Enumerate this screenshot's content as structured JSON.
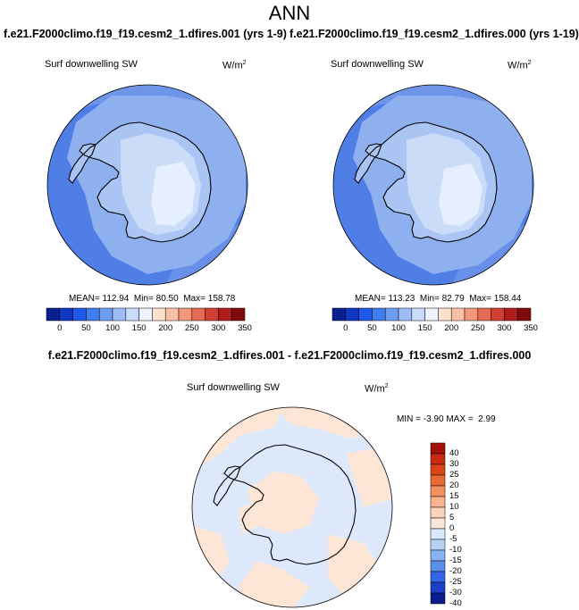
{
  "page_title": "ANN",
  "chart_data": [
    {
      "type": "heatmap",
      "projection": "south-polar-stereographic",
      "title": "f.e21.F2000climo.f19_f19.cesm2_1.dfires.001 (yrs 1-9)",
      "variable": "Surf downwelling SW",
      "units": "W/m",
      "units_exp": "2",
      "stats": {
        "mean_label": "MEAN=",
        "mean": "112.94",
        "min_label": "Min=",
        "min": "80.50",
        "max_label": "Max=",
        "max": "158.78"
      },
      "colorbar": {
        "orientation": "horizontal",
        "levels": [
          0,
          25,
          50,
          75,
          100,
          125,
          150,
          175,
          200,
          225,
          250,
          275,
          300,
          325,
          350
        ],
        "tick_labels": [
          "0",
          "50",
          "100",
          "150",
          "200",
          "250",
          "300",
          "350"
        ]
      }
    },
    {
      "type": "heatmap",
      "projection": "south-polar-stereographic",
      "title": "f.e21.F2000climo.f19_f19.cesm2_1.dfires.000 (yrs 1-19)",
      "variable": "Surf downwelling SW",
      "units": "W/m",
      "units_exp": "2",
      "stats": {
        "mean_label": "MEAN=",
        "mean": "113.23",
        "min_label": "Min=",
        "min": "82.79",
        "max_label": "Max=",
        "max": "158.44"
      },
      "colorbar": {
        "orientation": "horizontal",
        "levels": [
          0,
          25,
          50,
          75,
          100,
          125,
          150,
          175,
          200,
          225,
          250,
          275,
          300,
          325,
          350
        ],
        "tick_labels": [
          "0",
          "50",
          "100",
          "150",
          "200",
          "250",
          "300",
          "350"
        ]
      }
    },
    {
      "type": "heatmap",
      "projection": "south-polar-stereographic",
      "title": "f.e21.F2000climo.f19_f19.cesm2_1.dfires.001 - f.e21.F2000climo.f19_f19.cesm2_1.dfires.000",
      "variable": "Surf downwelling SW",
      "units": "W/m",
      "units_exp": "2",
      "stats": {
        "min_label": "MIN =",
        "min": "-3.90",
        "max_label": "MAX =",
        "max": "2.99"
      },
      "colorbar": {
        "orientation": "vertical",
        "levels": [
          40,
          30,
          25,
          20,
          15,
          10,
          5,
          0,
          -5,
          -10,
          -15,
          -20,
          -25,
          -30,
          -40
        ],
        "tick_labels": [
          "40",
          "30",
          "25",
          "20",
          "15",
          "10",
          "5",
          "0",
          "-5",
          "-10",
          "-15",
          "-20",
          "-25",
          "-30",
          "-40"
        ]
      }
    }
  ],
  "colors": {
    "horizontal_bar": [
      "#0a1f8f",
      "#1236c4",
      "#1e5ae6",
      "#3f7df0",
      "#6e9ef2",
      "#9cbdf5",
      "#c8dbfa",
      "#eef4ff",
      "#fde1cf",
      "#f8c1a4",
      "#f2977a",
      "#e56a53",
      "#d23f32",
      "#b01c1b",
      "#7e0a0a"
    ],
    "vertical_bar": [
      "#a31208",
      "#c72a10",
      "#db4416",
      "#e86a33",
      "#f28f5e",
      "#f8b48f",
      "#fbd4bb",
      "#fbe7d8",
      "#d8e8fb",
      "#b6d2f7",
      "#88b3f2",
      "#5a8fee",
      "#3466e8",
      "#1a40c8",
      "#0b1d8c"
    ],
    "ocean": "#4f7fe6",
    "ocean_light": "#6f95e9",
    "shelf": "#8fb0ef",
    "ice_outer": "#aac5f3",
    "ice_mid": "#cbdcf8",
    "ice_inner": "#e6efff",
    "diff_base": "#dde9fb",
    "diff_warm": "#fde6d6"
  }
}
